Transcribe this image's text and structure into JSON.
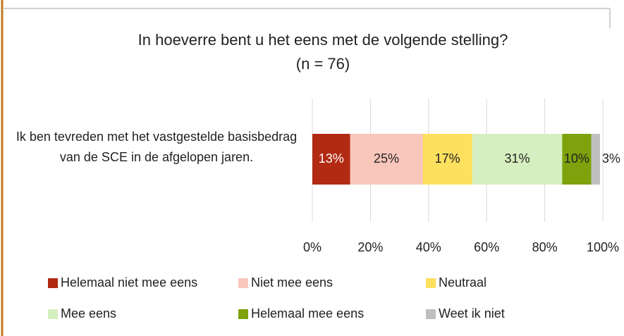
{
  "chart_data": {
    "type": "bar",
    "orientation": "horizontal",
    "stacked": true,
    "title": "In hoeverre bent u het eens met de volgende stelling?",
    "subtitle": "(n = 76)",
    "categories": [
      "Ik ben tevreden met het vastgestelde basisbedrag van de SCE in de afgelopen jaren."
    ],
    "series": [
      {
        "name": "Helemaal niet mee eens",
        "color": "#b22a12",
        "values": [
          13
        ],
        "value_labels": [
          "13%"
        ]
      },
      {
        "name": "Niet mee eens",
        "color": "#f9c6bc",
        "values": [
          25
        ],
        "value_labels": [
          "25%"
        ]
      },
      {
        "name": "Neutraal",
        "color": "#fde05e",
        "values": [
          17
        ],
        "value_labels": [
          "17%"
        ]
      },
      {
        "name": "Mee eens",
        "color": "#d6efc0",
        "values": [
          31
        ],
        "value_labels": [
          "31%"
        ]
      },
      {
        "name": "Helemaal mee eens",
        "color": "#7ea20c",
        "values": [
          10
        ],
        "value_labels": [
          "10%"
        ]
      },
      {
        "name": "Weet ik niet",
        "color": "#bfbfbf",
        "values": [
          3
        ],
        "value_labels": [
          "3%"
        ]
      }
    ],
    "xlim": [
      0,
      100
    ],
    "xticks": [
      {
        "value": 0,
        "label": "0%"
      },
      {
        "value": 20,
        "label": "20%"
      },
      {
        "value": 40,
        "label": "40%"
      },
      {
        "value": 60,
        "label": "60%"
      },
      {
        "value": 80,
        "label": "80%"
      },
      {
        "value": 100,
        "label": "100%"
      }
    ],
    "grid": true,
    "legend": "bottom"
  }
}
